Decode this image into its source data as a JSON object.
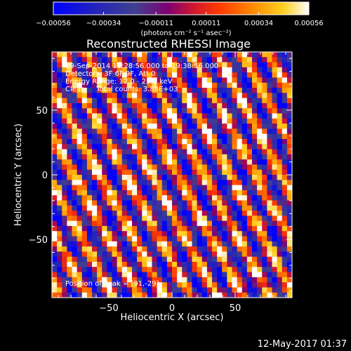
{
  "chart_data": {
    "type": "heatmap",
    "title": "Reconstructed RHESSI Image",
    "xlabel": "Heliocentric X (arcsec)",
    "ylabel": "Heliocentric Y (arcsec)",
    "xlim": [
      -95,
      95
    ],
    "ylim": [
      -95,
      95
    ],
    "x_ticks": [
      -50,
      0,
      50
    ],
    "y_ticks": [
      -50,
      0,
      50
    ],
    "x_tick_labels": [
      "−50",
      "0",
      "50"
    ],
    "y_tick_labels": [
      "−50",
      "0",
      "50"
    ],
    "grid": false,
    "colorbar": {
      "position": "top",
      "tick_values": [
        -0.00056,
        -0.00034,
        -0.00011,
        0.00011,
        0.00034,
        0.00056
      ],
      "tick_labels": [
        "−0.00056",
        "−0.00034",
        "−0.00011",
        "0.00011",
        "0.00034",
        "0.00056"
      ],
      "units_label": "(photons cm⁻² s⁻¹ asec⁻²)",
      "colors": [
        "#0000ff",
        "#2020c0",
        "#404090",
        "#700070",
        "#c00030",
        "#ff2000",
        "#ff7000",
        "#ffb000",
        "#ffe030",
        "#ffffff"
      ]
    },
    "grid_size": [
      48,
      48
    ],
    "annotations": [
      "19-Sep-2014 19:28:56.000 to 19:38:56.000",
      "Detectors: 3F 6F 9F, Att 0",
      "Energy Range: 12.0 - 25.0 keV",
      "Clean     Total counts: 3.88E+03",
      "Position of Peak = [91,-29]"
    ],
    "peak_position": [
      91,
      -29
    ]
  },
  "timestamp": "12-May-2017 01:37"
}
